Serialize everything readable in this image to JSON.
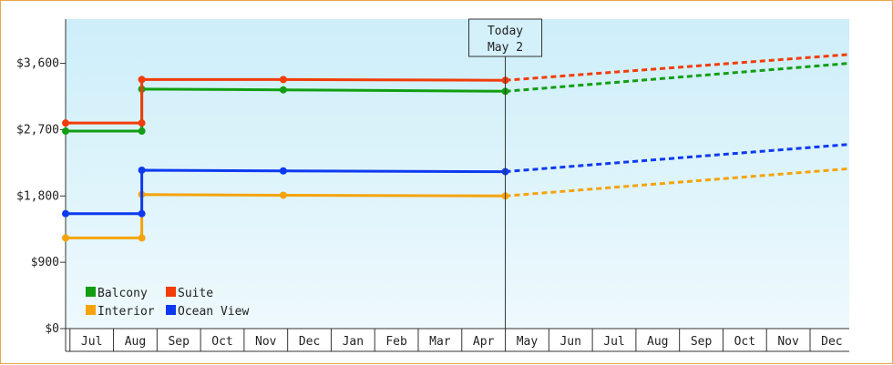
{
  "chart_data": {
    "type": "line",
    "title": "",
    "xlabel": "",
    "ylabel": "",
    "y_ticks": [
      "$0",
      "$900",
      "$1,800",
      "$2,700",
      "$3,600"
    ],
    "ylim": [
      0,
      4200
    ],
    "months": [
      "Jul",
      "Aug",
      "Sep",
      "Oct",
      "Nov",
      "Dec",
      "Jan",
      "Feb",
      "Mar",
      "Apr",
      "May",
      "Jun",
      "Jul",
      "Aug",
      "Sep",
      "Oct",
      "Nov",
      "Dec"
    ],
    "x_start_month": 0.4,
    "x_end_month": 18.4,
    "today": {
      "label_line1": "Today",
      "label_line2": "May 2",
      "month": 10.0
    },
    "grid": false,
    "background": {
      "top": "#cdeef9",
      "bottom": "#eef9fd"
    },
    "legend_position": "bottom-left",
    "series": [
      {
        "name": "Balcony",
        "color": "#129e12",
        "points": [
          [
            0,
            2680
          ],
          [
            1.65,
            2680
          ],
          [
            1.65,
            3250
          ],
          [
            4.9,
            3240
          ],
          [
            10.0,
            3220
          ]
        ],
        "forecast_end": 3600
      },
      {
        "name": "Suite",
        "color": "#f23c0a",
        "points": [
          [
            0,
            2790
          ],
          [
            1.65,
            2790
          ],
          [
            1.65,
            3380
          ],
          [
            4.9,
            3380
          ],
          [
            10.0,
            3370
          ]
        ],
        "forecast_end": 3720
      },
      {
        "name": "Interior",
        "color": "#f5a30a",
        "points": [
          [
            0,
            1230
          ],
          [
            1.65,
            1230
          ],
          [
            1.65,
            1820
          ],
          [
            4.9,
            1810
          ],
          [
            10.0,
            1800
          ]
        ],
        "forecast_end": 2170
      },
      {
        "name": "Ocean View",
        "color": "#0d3af0",
        "points": [
          [
            0,
            1560
          ],
          [
            1.65,
            1560
          ],
          [
            1.65,
            2150
          ],
          [
            4.9,
            2140
          ],
          [
            10.0,
            2130
          ]
        ],
        "forecast_end": 2500
      }
    ],
    "legend_order": [
      "Balcony",
      "Suite",
      "Interior",
      "Ocean View"
    ]
  }
}
